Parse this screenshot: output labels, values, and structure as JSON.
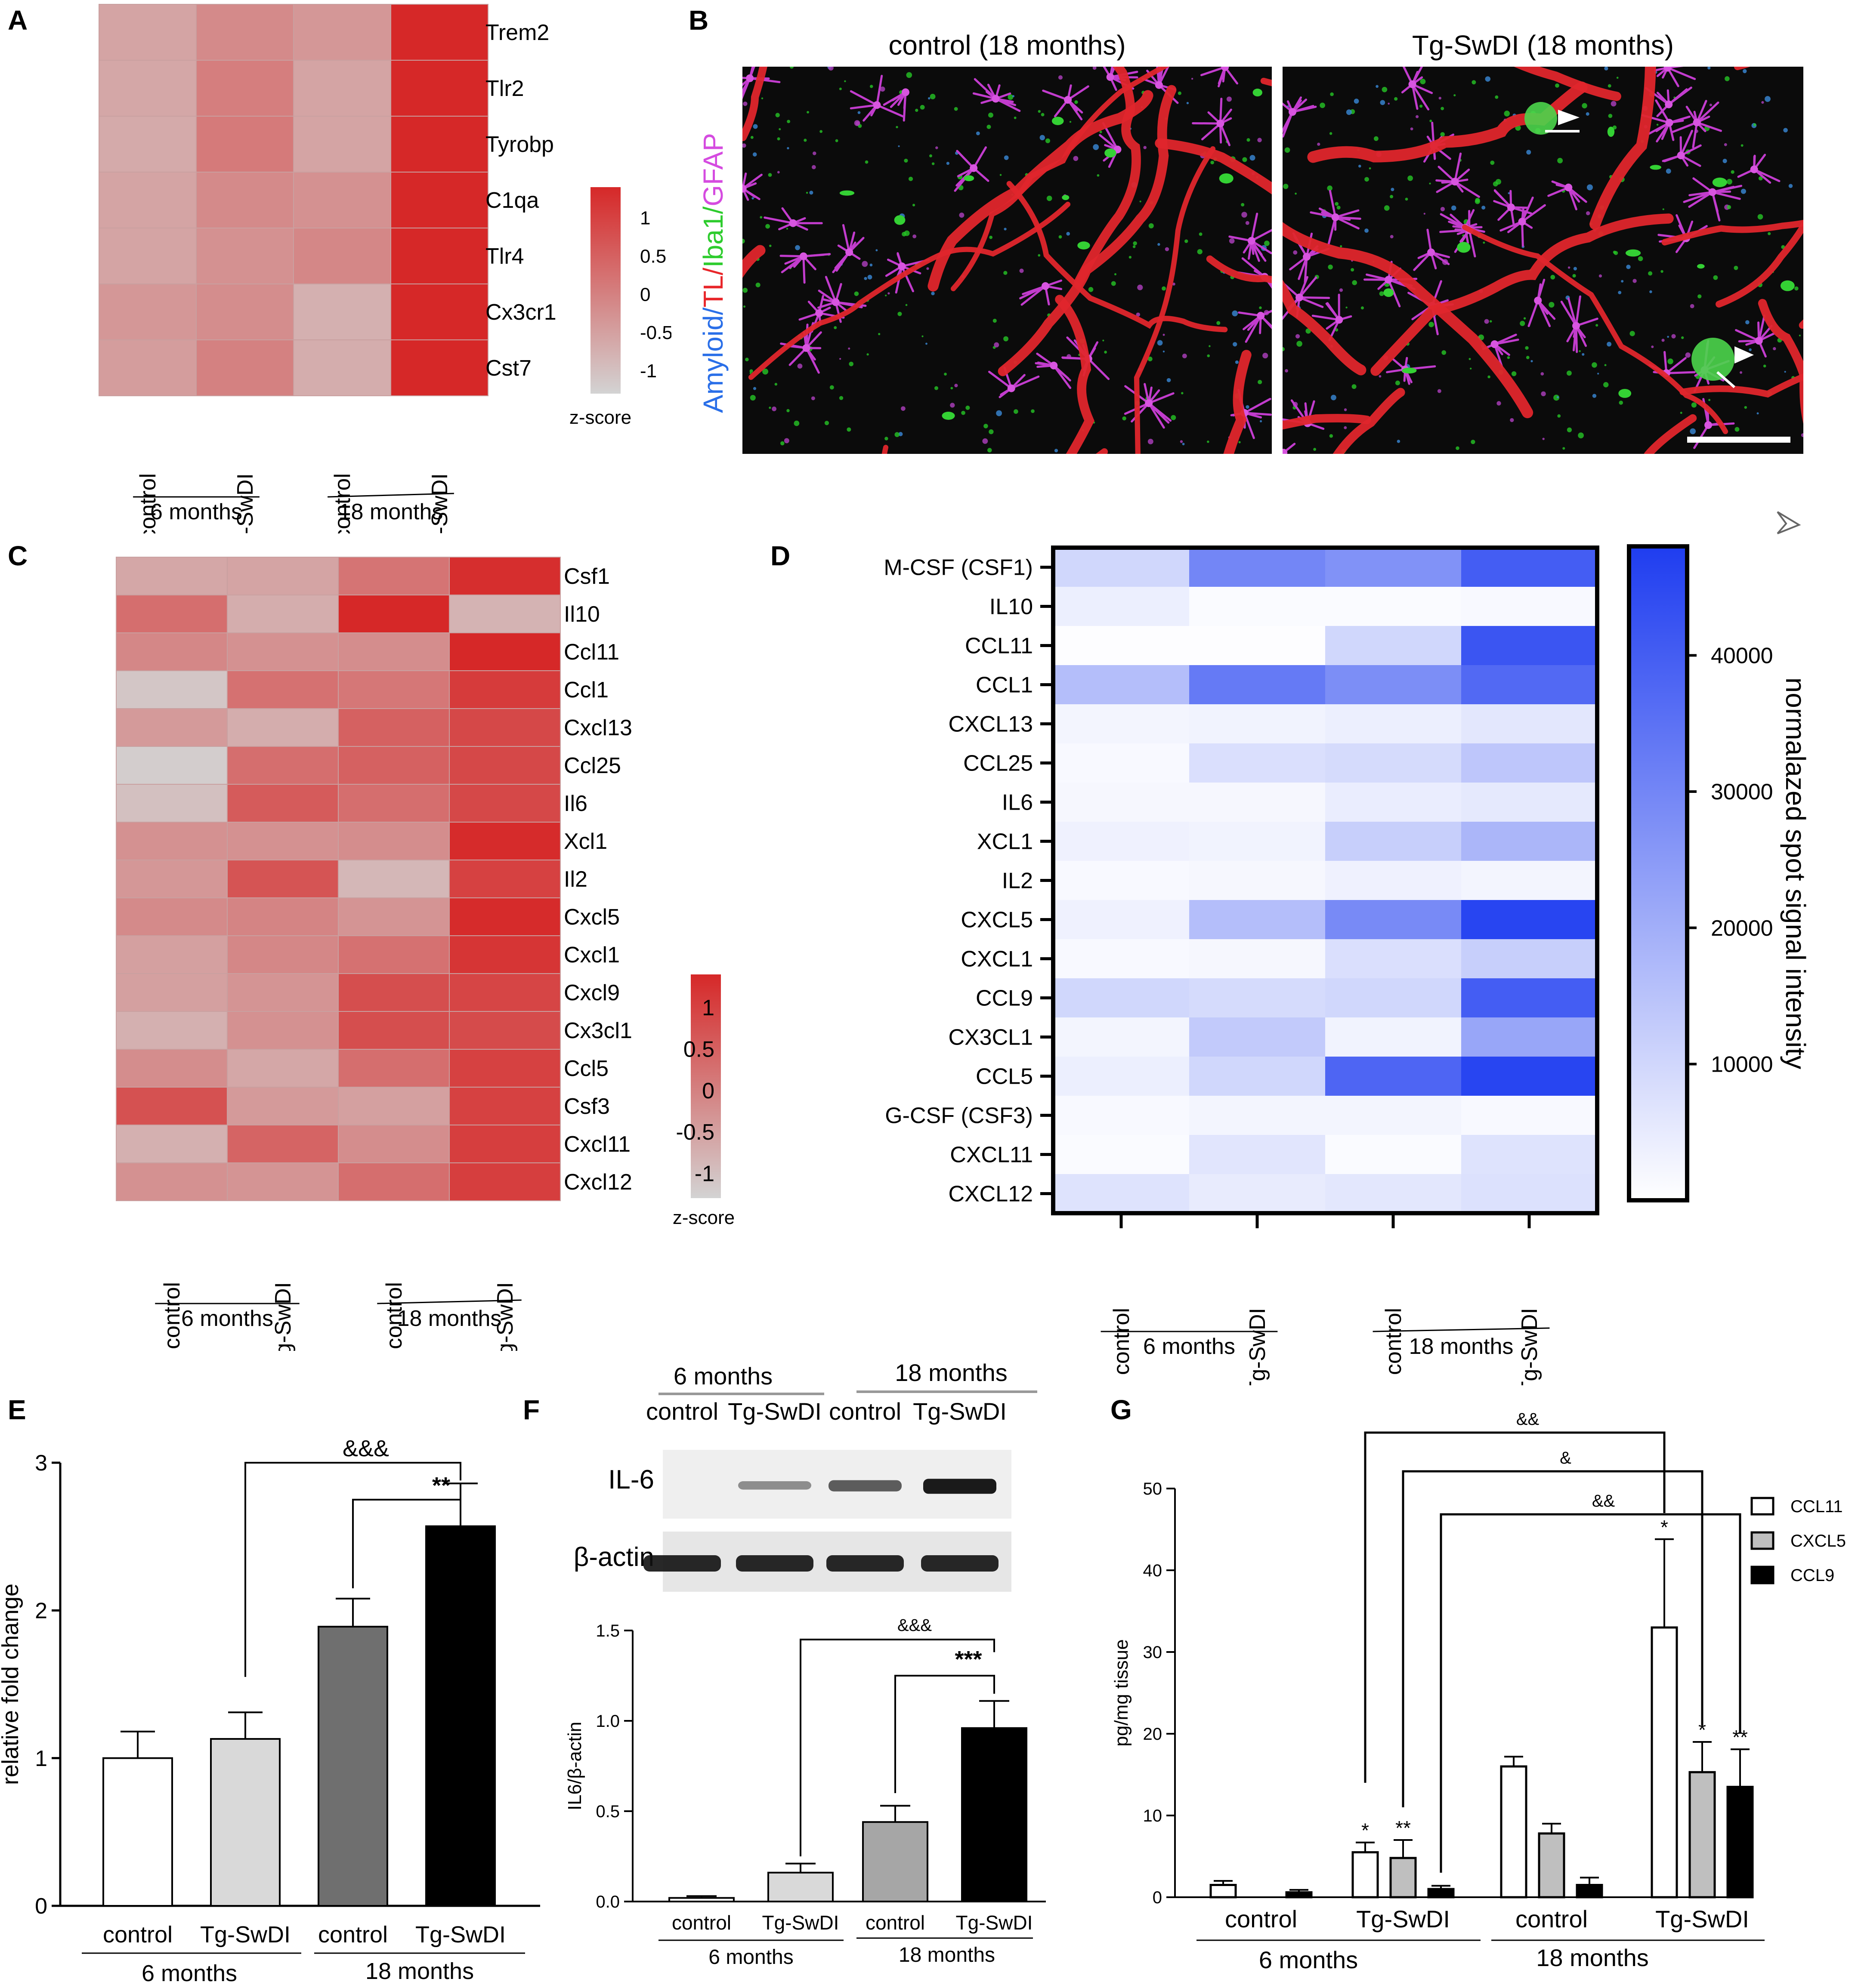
{
  "panels": {
    "A": {
      "label": "A"
    },
    "B": {
      "label": "B",
      "title_left": "control (18 months)",
      "title_right": "Tg-SwDI (18 months)",
      "stain_parts": [
        {
          "text": "Amyloid",
          "color": "#2a6fe8"
        },
        {
          "text": "/",
          "color": "#2a6fe8"
        },
        {
          "text": "TL",
          "color": "#e8262a"
        },
        {
          "text": "/",
          "color": "#e8262a"
        },
        {
          "text": "Iba1",
          "color": "#2ecc2e"
        },
        {
          "text": "/",
          "color": "#2ecc2e"
        },
        {
          "text": "GFAP",
          "color": "#d54be0"
        }
      ]
    },
    "C": {
      "label": "C"
    },
    "D": {
      "label": "D"
    },
    "E": {
      "label": "E"
    },
    "F": {
      "label": "F"
    },
    "G": {
      "label": "G"
    }
  },
  "chart_data": [
    {
      "id": "A",
      "type": "heatmap",
      "rows": [
        "Trem2",
        "Tlr2",
        "Tyrobp",
        "C1qa",
        "Tlr4",
        "Cx3cr1",
        "Cst7"
      ],
      "columns": [
        "control",
        "Tg-SwDI",
        "control",
        "Tg-SwDI"
      ],
      "groups": [
        "6 months",
        "18 months"
      ],
      "values": [
        [
          -0.55,
          -0.15,
          -0.35,
          1.4
        ],
        [
          -0.6,
          0.05,
          -0.55,
          1.4
        ],
        [
          -0.65,
          0.1,
          -0.55,
          1.4
        ],
        [
          -0.55,
          -0.15,
          -0.25,
          1.4
        ],
        [
          -0.55,
          -0.25,
          -0.1,
          1.4
        ],
        [
          -0.35,
          -0.2,
          -0.75,
          1.4
        ],
        [
          -0.45,
          0.0,
          -0.7,
          1.4
        ]
      ],
      "colorbar": {
        "ticks": [
          "1",
          "0.5",
          "0",
          "-0.5",
          "-1"
        ],
        "tick_values": [
          1,
          0.5,
          0,
          -0.5,
          -1
        ],
        "label": "z-score",
        "min": -1.3,
        "max": 1.4,
        "low_color": "#d3d3d3",
        "high_color": "#d62828"
      }
    },
    {
      "id": "C",
      "type": "heatmap",
      "rows": [
        "Csf1",
        "Il10",
        "Ccl11",
        "Ccl1",
        "Cxcl13",
        "Ccl25",
        "Il6",
        "Xcl1",
        "Il2",
        "Cxcl5",
        "Cxcl1",
        "Cxcl9",
        "Cx3cl1",
        "Ccl5",
        "Csf3",
        "Cxcl11",
        "Cxcl12"
      ],
      "columns": [
        "control",
        "Tg-SwDI",
        "control",
        "Tg-SwDI"
      ],
      "groups": [
        "6 months",
        "18 months"
      ],
      "values": [
        [
          -0.6,
          -0.55,
          0.2,
          1.3
        ],
        [
          0.3,
          -0.7,
          1.45,
          -0.8
        ],
        [
          -0.1,
          -0.25,
          -0.2,
          1.4
        ],
        [
          -1.1,
          0.25,
          0.15,
          1.1
        ],
        [
          -0.4,
          -0.7,
          0.5,
          0.9
        ],
        [
          -1.2,
          0.3,
          0.5,
          0.9
        ],
        [
          -1.0,
          0.6,
          0.3,
          0.9
        ],
        [
          -0.25,
          -0.25,
          -0.2,
          1.35
        ],
        [
          -0.35,
          0.7,
          -0.85,
          1.0
        ],
        [
          -0.15,
          -0.05,
          -0.3,
          1.35
        ],
        [
          -0.5,
          -0.1,
          0.25,
          1.2
        ],
        [
          -0.5,
          -0.3,
          0.8,
          0.95
        ],
        [
          -0.75,
          -0.25,
          0.8,
          0.85
        ],
        [
          -0.2,
          -0.6,
          0.3,
          1.0
        ],
        [
          0.75,
          -0.4,
          -0.5,
          1.0
        ],
        [
          -0.75,
          0.45,
          -0.2,
          1.05
        ],
        [
          -0.25,
          -0.3,
          0.3,
          1.05
        ]
      ],
      "colorbar": {
        "ticks": [
          "1",
          "0.5",
          "0",
          "-0.5",
          "-1"
        ],
        "tick_values": [
          1,
          0.5,
          0,
          -0.5,
          -1
        ],
        "label": "z-score",
        "min": -1.3,
        "max": 1.4,
        "low_color": "#d3d3d3",
        "high_color": "#d62828"
      }
    },
    {
      "id": "D",
      "type": "heatmap",
      "rows": [
        "M-CSF (CSF1)",
        "IL10",
        "CCL11",
        "CCL1",
        "CXCL13",
        "CCL25",
        "IL6",
        "XCL1",
        "IL2",
        "CXCL5",
        "CXCL1",
        "CCL9",
        "CX3CL1",
        "CCL5",
        "G-CSF (CSF3)",
        "CXCL11",
        "CXCL12"
      ],
      "columns": [
        "control",
        "Tg-SwDI",
        "control",
        "Tg-SwDI"
      ],
      "groups": [
        "6 months",
        "18 months"
      ],
      "values": [
        [
          10000,
          30000,
          27000,
          40000
        ],
        [
          4000,
          1000,
          1000,
          1500
        ],
        [
          500,
          500,
          10000,
          42000
        ],
        [
          16000,
          33000,
          28000,
          37000
        ],
        [
          2500,
          3000,
          4000,
          6000
        ],
        [
          1500,
          8000,
          9000,
          14000
        ],
        [
          2000,
          2000,
          4500,
          5500
        ],
        [
          3500,
          3000,
          12000,
          18000
        ],
        [
          1500,
          2000,
          3500,
          2500
        ],
        [
          3500,
          16000,
          29000,
          46000
        ],
        [
          1500,
          2000,
          8000,
          12000
        ],
        [
          10000,
          9000,
          10000,
          40000
        ],
        [
          2500,
          13000,
          3000,
          22000
        ],
        [
          4000,
          10000,
          38000,
          46000
        ],
        [
          1500,
          2500,
          2500,
          1500
        ],
        [
          1000,
          6500,
          1000,
          7000
        ],
        [
          7000,
          5000,
          6000,
          7500
        ]
      ],
      "colorbar": {
        "ticks": [
          "40000",
          "30000",
          "20000",
          "10000"
        ],
        "tick_values": [
          40000,
          30000,
          20000,
          10000
        ],
        "label": "normalazed spot signal intensity",
        "min": 0,
        "max": 48000,
        "low_color": "#ffffff",
        "high_color": "#1f3df0"
      }
    },
    {
      "id": "E",
      "type": "bar",
      "categories": [
        "control",
        "Tg-SwDI",
        "control",
        "Tg-SwDI"
      ],
      "groups": [
        "6 months",
        "18 months"
      ],
      "values": [
        1.0,
        1.13,
        1.89,
        2.57
      ],
      "errors": [
        0.18,
        0.18,
        0.19,
        0.29
      ],
      "colors": [
        "#ffffff",
        "#d9d9d9",
        "#6f6f6f",
        "#000000"
      ],
      "ylabel": "relative fold change",
      "ylim": [
        0,
        3
      ],
      "yticks": [
        "0",
        "1",
        "2",
        "3"
      ],
      "annotations": [
        {
          "from": 3,
          "to": 2,
          "text": "**"
        },
        {
          "from": 3,
          "to": 1,
          "text": "&&&"
        }
      ]
    },
    {
      "id": "F",
      "type": "bar",
      "blot": {
        "header_groups": [
          "6 months",
          "18 months"
        ],
        "header_lanes": [
          "control",
          "Tg-SwDI",
          "control",
          "Tg-SwDI"
        ],
        "rows": [
          "IL-6",
          "β-actin"
        ],
        "il6_intensity": [
          0.02,
          0.25,
          0.55,
          0.95
        ],
        "actin_intensity": [
          0.9,
          0.9,
          0.9,
          0.9
        ]
      },
      "categories": [
        "control",
        "Tg-SwDI",
        "control",
        "Tg-SwDI"
      ],
      "groups": [
        "6 months",
        "18 months"
      ],
      "values": [
        0.02,
        0.16,
        0.44,
        0.96
      ],
      "errors": [
        0.01,
        0.05,
        0.09,
        0.15
      ],
      "colors": [
        "#ffffff",
        "#d9d9d9",
        "#a6a6a6",
        "#000000"
      ],
      "ylabel": "IL6/β-actin",
      "ylim": [
        0,
        1.5
      ],
      "yticks": [
        "0.0",
        "0.5",
        "1.0",
        "1.5"
      ],
      "annotations": [
        {
          "from": 3,
          "to": 2,
          "text": "***"
        },
        {
          "from": 3,
          "to": 1,
          "text": "&&&"
        }
      ]
    },
    {
      "id": "G",
      "type": "bar",
      "categories": [
        "control",
        "Tg-SwDI",
        "control",
        "Tg-SwDI"
      ],
      "groups": [
        "6 months",
        "18 months"
      ],
      "series": [
        {
          "name": "CCL11",
          "values": [
            1.5,
            5.5,
            16.0,
            33.0
          ],
          "errors": [
            0.5,
            1.2,
            1.2,
            10.8
          ],
          "color": "#ffffff",
          "marks": [
            "",
            "*",
            "",
            "*"
          ]
        },
        {
          "name": "CXCL5",
          "values": [
            0.0,
            4.8,
            7.8,
            15.3
          ],
          "errors": [
            0.0,
            2.2,
            1.2,
            3.7
          ],
          "color": "#bfbfbf",
          "marks": [
            "",
            "**",
            "",
            "*"
          ]
        },
        {
          "name": "CCL9",
          "values": [
            0.6,
            1.0,
            1.5,
            13.5
          ],
          "errors": [
            0.3,
            0.4,
            0.9,
            4.6
          ],
          "color": "#000000",
          "marks": [
            "",
            "",
            "",
            "**"
          ]
        }
      ],
      "ylabel": "pg/mg tissue",
      "ylim": [
        0,
        50
      ],
      "yticks": [
        "0",
        "10",
        "20",
        "30",
        "40",
        "50"
      ],
      "annotations": [
        {
          "text": "&&"
        },
        {
          "text": "&"
        },
        {
          "text": "&&"
        }
      ]
    }
  ]
}
